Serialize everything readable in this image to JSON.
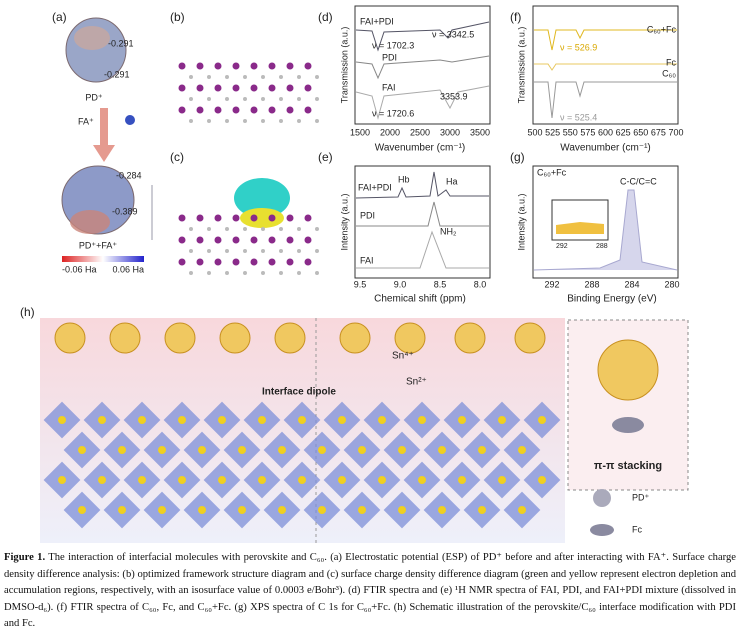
{
  "panels": {
    "a": {
      "label": "(a)",
      "texts": [
        "-0.291",
        "-0.291",
        "PD⁺",
        "FA⁺",
        "-0.284",
        "-0.389",
        "PD⁺+FA⁺",
        "-0.06 Ha",
        "0.06 Ha"
      ]
    },
    "b": {
      "label": "(b)"
    },
    "c": {
      "label": "(c)"
    },
    "d": {
      "label": "(d)",
      "ylabel": "Transmission (a.u.)",
      "xlabel": "Wavenumber (cm⁻¹)",
      "xticks": [
        "1500",
        "2000",
        "2500",
        "3000",
        "3500"
      ],
      "annotations": [
        "FAI+PDI",
        "ν = 3342.5",
        "ν = 1702.3",
        "PDI",
        "FAI",
        "3353.9",
        "ν = 1720.6"
      ]
    },
    "e": {
      "label": "(e)",
      "ylabel": "Intensity (a.u.)",
      "xlabel": "Chemical shift (ppm)",
      "xticks": [
        "9.5",
        "9.0",
        "8.5",
        "8.0"
      ],
      "annotations": [
        "FAI+PDI",
        "Hb",
        "Ha",
        "PDI",
        "NH₂",
        "FAI"
      ]
    },
    "f": {
      "label": "(f)",
      "ylabel": "Transmission (a.u.)",
      "xlabel": "Wavenumber (cm⁻¹)",
      "xticks": [
        "500",
        "525",
        "550",
        "575",
        "600",
        "625",
        "650",
        "675",
        "700"
      ],
      "annotations": [
        "C₆₀+Fc",
        "ν = 526.9",
        "Fc",
        "C₆₀",
        "ν = 525.4"
      ]
    },
    "g": {
      "label": "(g)",
      "ylabel": "Intensity (a.u.)",
      "xlabel": "Binding Energy (eV)",
      "xticks": [
        "292",
        "288",
        "284",
        "280"
      ],
      "annotations": [
        "C₆₀+Fc",
        "C-C/C=C"
      ],
      "inset_ticks": [
        "292",
        "288"
      ]
    },
    "h": {
      "label": "(h)",
      "texts": [
        "Interface dipole",
        "Sn⁴⁺",
        "Sn²⁺",
        "π-π stacking",
        "PD⁺",
        "Fc"
      ]
    }
  },
  "caption": {
    "label": "Figure 1.",
    "text": "The interaction of interfacial molecules with perovskite and C₆₀. (a) Electrostatic potential (ESP) of PD⁺ before and after interacting with FA⁺. Surface charge density difference analysis: (b) optimized framework structure diagram and (c) surface charge density difference diagram (green and yellow represent electron depletion and accumulation regions, respectively, with an isosurface value of 0.0003 e/Bohr³). (d) FTIR spectra and (e) ¹H NMR spectra of FAI, PDI, and FAI+PDI mixture (dissolved in DMSO-d₆). (f) FTIR spectra of C₆₀, Fc, and C₆₀+Fc. (g) XPS spectra of C 1s for C₆₀+Fc. (h) Schematic illustration of the perovskite/C₆₀ interface modification with PDI and Fc."
  }
}
